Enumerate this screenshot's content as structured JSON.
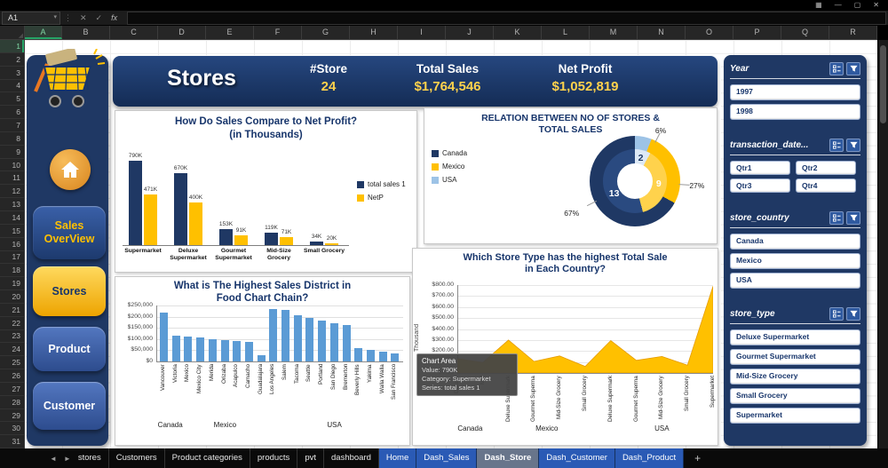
{
  "window": {
    "controls": [
      {
        "name": "ribbon-display",
        "glyph": "▦"
      },
      {
        "name": "minimize",
        "glyph": "—"
      },
      {
        "name": "restore",
        "glyph": "▢"
      },
      {
        "name": "close",
        "glyph": "✕"
      }
    ]
  },
  "excel": {
    "name_box": "A1",
    "formula_bar": {
      "cancel": "✕",
      "enter": "✓",
      "fx": "fx",
      "caret": "▾",
      "more": "⋮",
      "value": ""
    },
    "columns": [
      "A",
      "B",
      "C",
      "D",
      "E",
      "F",
      "G",
      "H",
      "I",
      "J",
      "K",
      "L",
      "M",
      "N",
      "O",
      "P",
      "Q",
      "R"
    ],
    "selected_column": "A",
    "row_count": 31,
    "selected_row": 1,
    "tab_nav": {
      "left": "◄",
      "right": "►"
    },
    "sheet_tabs": [
      {
        "label": "stores",
        "type": "plain"
      },
      {
        "label": "Customers",
        "type": "plain"
      },
      {
        "label": "Product categories",
        "type": "plain"
      },
      {
        "label": "products",
        "type": "plain"
      },
      {
        "label": "pvt",
        "type": "plain"
      },
      {
        "label": "dashboard",
        "type": "plain"
      },
      {
        "label": "Home",
        "type": "blue"
      },
      {
        "label": "Dash_Sales",
        "type": "blue"
      },
      {
        "label": "Dash_Store",
        "type": "active"
      },
      {
        "label": "Dash_Customer",
        "type": "blue"
      },
      {
        "label": "Dash_Product",
        "type": "blue"
      }
    ],
    "add_sheet": "+"
  },
  "dashboard": {
    "title": "Stores",
    "stats": [
      {
        "label": "#Store",
        "value": "24"
      },
      {
        "label": "Total Sales",
        "value": "$1,764,546"
      },
      {
        "label": "Net Profit",
        "value": "$1,052,819"
      }
    ],
    "nav": [
      {
        "lines": [
          "Sales",
          "OverView"
        ],
        "variant": "navy",
        "name": "sales-overview"
      },
      {
        "lines": [
          "Stores"
        ],
        "variant": "yellow",
        "name": "stores"
      },
      {
        "lines": [
          "Product"
        ],
        "variant": "blue",
        "name": "product"
      },
      {
        "lines": [
          "Customer"
        ],
        "variant": "blue",
        "name": "customer"
      }
    ],
    "slicers": [
      {
        "title": "Year",
        "columns": 1,
        "items": [
          "1997",
          "1998"
        ]
      },
      {
        "title": "transaction_date...",
        "columns": 2,
        "items": [
          "Qtr1",
          "Qtr2",
          "Qtr3",
          "Qtr4"
        ]
      },
      {
        "title": "store_country",
        "columns": 1,
        "items": [
          "Canada",
          "Mexico",
          "USA"
        ]
      },
      {
        "title": "store_type",
        "columns": 1,
        "items": [
          "Deluxe Supermarket",
          "Gourmet Supermarket",
          "Mid-Size Grocery",
          "Small Grocery",
          "Supermarket"
        ]
      }
    ]
  },
  "chart_data": [
    {
      "type": "bar",
      "title": "How Do Sales Compare to Net Profit? (in Thousands)",
      "title_lines": [
        "How Do Sales Compare to Net Profit?",
        "(in Thousands)"
      ],
      "categories": [
        "Supermarket",
        "Deluxe Supermarket",
        "Gourmet Supermarket",
        "Mid-Size Grocery",
        "Small Grocery"
      ],
      "series": [
        {
          "name": "total sales 1",
          "color": "#1F3864",
          "values": [
            790,
            670,
            153,
            119,
            34
          ],
          "labels": [
            "790K",
            "670K",
            "153K",
            "119K",
            "34K"
          ]
        },
        {
          "name": "NetP",
          "color": "#FFC000",
          "values": [
            471,
            400,
            91,
            71,
            20
          ],
          "labels": [
            "471K",
            "400K",
            "91K",
            "71K",
            "20K"
          ]
        }
      ],
      "ymax": 800,
      "unit": "thousands"
    },
    {
      "type": "doughnut",
      "title": "RELATION BETWEEN NO OF STORES & TOTAL SALES",
      "title_lines": [
        "RELATION BETWEEN NO OF STORES &",
        "TOTAL SALES"
      ],
      "legend": [
        {
          "label": "Canada",
          "color": "#1F3864"
        },
        {
          "label": "Mexico",
          "color": "#FFC000"
        },
        {
          "label": "USA",
          "color": "#9DC3E6"
        }
      ],
      "store_counts": [
        2,
        13,
        9
      ],
      "sales_pct": [
        "6%",
        "27%",
        "67%"
      ],
      "outer_ring": [
        {
          "pct": 6,
          "color": "#9DC3E6",
          "label": "6%"
        },
        {
          "pct": 27,
          "color": "#FFC000",
          "label": "27%"
        },
        {
          "pct": 67,
          "color": "#1F3864",
          "label": "67%"
        }
      ],
      "inner_ring": [
        {
          "pct": 8,
          "color": "#DDE9F6",
          "label": "2",
          "text_color": "#1F3864"
        },
        {
          "pct": 38,
          "color": "#FFD24C",
          "label": "9",
          "text_color": "#FFFFFF"
        },
        {
          "pct": 54,
          "color": "#2A4A80",
          "label": "13",
          "text_color": "#FFFFFF"
        }
      ]
    },
    {
      "type": "bar",
      "title": "What is The Highest Sales District in Food Chart Chain?",
      "title_lines": [
        "What is The Highest Sales District in",
        "Food Chart Chain?"
      ],
      "bar_color": "#5B9BD5",
      "ymax": 250000,
      "ylabels": [
        "$250,000",
        "$200,000",
        "$150,000",
        "$100,000",
        "$50,000",
        "$0"
      ],
      "groups": [
        {
          "country": "Canada",
          "districts": [
            "Vancouver",
            "Victoria"
          ],
          "values": [
            218000,
            115000
          ]
        },
        {
          "country": "Mexico",
          "districts": [
            "Mexico",
            "Mexico City",
            "Merida",
            "Orizaba",
            "Acapulco",
            "Camacho",
            "Guadalajara"
          ],
          "values": [
            112000,
            107000,
            101000,
            96000,
            91000,
            86000,
            26000
          ]
        },
        {
          "country": "USA",
          "districts": [
            "Los Angeles",
            "Salem",
            "Tacoma",
            "Seattle",
            "Portland",
            "San Diego",
            "Bremerton",
            "Beverly Hills",
            "Yakima",
            "Walla Walla",
            "San Francisco"
          ],
          "values": [
            236000,
            229000,
            207000,
            196000,
            183000,
            171000,
            161000,
            58000,
            51000,
            45000,
            34000
          ]
        }
      ]
    },
    {
      "type": "area",
      "title": "Which Store Type has the highest Total Sale in Each Country?",
      "title_lines": [
        "Which Store Type has the highest Total Sale",
        "in Each Country?"
      ],
      "color": "#FFC000",
      "y_axis_title": "Thousand",
      "ymax": 800,
      "ylabels": [
        "$800.00",
        "$700.00",
        "$600.00",
        "$500.00",
        "$400.00",
        "$300.00",
        "$200.00",
        "$100.00",
        "$0.00"
      ],
      "series_name": "total sales 1",
      "groups": [
        {
          "country": "Canada",
          "types": [
            "Deluxe",
            "Mid"
          ],
          "values": [
            130,
            95
          ]
        },
        {
          "country": "Mexico",
          "types": [
            "Deluxe Supermarket",
            "Gourmet Supermarket",
            "Mid-Size Grocery",
            "Small Grocery"
          ],
          "values": [
            300,
            105,
            155,
            60
          ]
        },
        {
          "country": "USA",
          "types": [
            "Deluxe Supermarket",
            "Gourmet Supermarket",
            "Mid-Size Grocery",
            "Small Grocery",
            "Supermarket"
          ],
          "values": [
            295,
            115,
            150,
            70,
            790
          ]
        }
      ],
      "tooltip": {
        "lines": [
          "Chart Area",
          "Value: 790K",
          "Category: Supermarket",
          "Series: total sales 1"
        ]
      }
    }
  ]
}
